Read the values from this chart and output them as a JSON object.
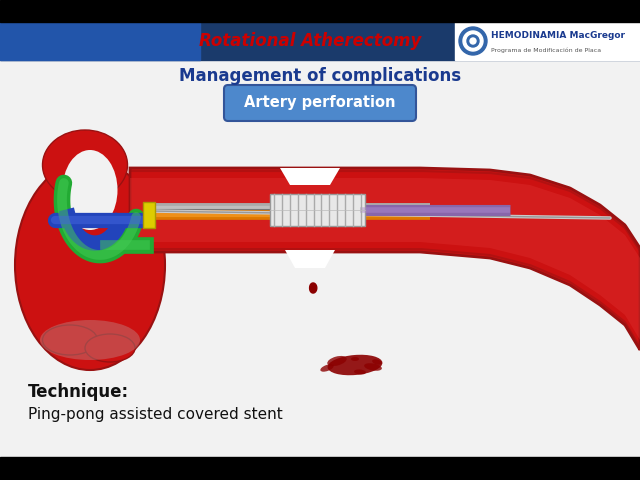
{
  "bg_color": "#f2f2f2",
  "black_bar_color": "#000000",
  "header_bar_color": "#1a3a6b",
  "header_text": "Rotational Atherectomy",
  "header_text_color": "#cc0000",
  "logo_text": "HEMODINAMIA MacGregor",
  "logo_sub": "Programa de Modificación de Placa",
  "management_text": "Management of complications",
  "management_color": "#1a3a8f",
  "artery_box_text": "Artery perforation",
  "artery_box_bg": "#4d88cc",
  "artery_box_border": "#2266aa",
  "technique_label": "Technique:",
  "technique_text": "Ping-pong assisted covered stent",
  "artery_red": "#cc1111",
  "artery_dark": "#991111",
  "artery_highlight": "#dd4444",
  "green_catheter": "#22aa33",
  "blue_catheter": "#2244bb",
  "orange_catheter": "#dd7700",
  "yellow_connector": "#ddcc00",
  "gray_wire": "#888888",
  "dark_wire": "#444444",
  "stent_white": "#e8e8e8",
  "stent_gray": "#aaaaaa",
  "purple_catheter": "#8866aa",
  "blood_drop": "#8b0000",
  "blood_pool": "#8b0000"
}
